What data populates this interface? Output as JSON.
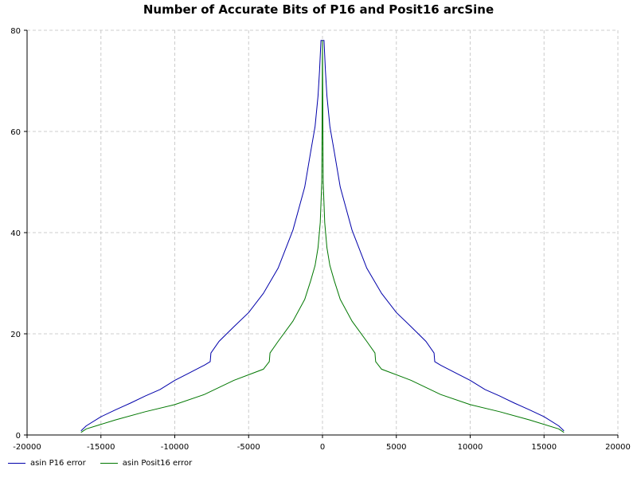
{
  "chart_data": {
    "type": "line",
    "title": "Number of Accurate Bits of P16 and Posit16 arcSine",
    "xlabel": "",
    "ylabel": "",
    "xlim": [
      -20000,
      20000
    ],
    "ylim": [
      0,
      80
    ],
    "xticks": [
      -20000,
      -15000,
      -10000,
      -5000,
      0,
      5000,
      10000,
      15000,
      20000
    ],
    "yticks": [
      0,
      20,
      40,
      60,
      80
    ],
    "grid": true,
    "legend_position": "bottom-left",
    "series": [
      {
        "name": "asin P16 error",
        "color": "#0000aa",
        "x": [
          -16350,
          -16000,
          -15000,
          -14000,
          -13000,
          -12000,
          -11000,
          -10000,
          -9000,
          -8000,
          -7600,
          -7550,
          -7000,
          -6000,
          -5000,
          -4000,
          -3000,
          -2000,
          -1200,
          -800,
          -500,
          -300,
          -200,
          -100,
          0,
          100,
          200,
          300,
          500,
          800,
          1200,
          2000,
          3000,
          4000,
          5000,
          6000,
          7000,
          7550,
          7600,
          8000,
          9000,
          10000,
          11000,
          12000,
          13000,
          14000,
          15000,
          16000,
          16350
        ],
        "y": [
          0.8,
          1.8,
          3.6,
          5.0,
          6.3,
          7.7,
          9.0,
          10.8,
          12.3,
          13.8,
          14.5,
          16.2,
          18.5,
          21.4,
          24.2,
          28.0,
          33.0,
          40.5,
          49.0,
          56.0,
          61.0,
          67.0,
          72.0,
          78.0,
          78.0,
          78.0,
          72.0,
          67.0,
          61.0,
          56.0,
          49.0,
          40.5,
          33.0,
          28.0,
          24.2,
          21.4,
          18.5,
          16.2,
          14.5,
          13.8,
          12.3,
          10.8,
          9.0,
          7.7,
          6.3,
          5.0,
          3.6,
          1.8,
          0.8
        ]
      },
      {
        "name": "asin Posit16 error",
        "color": "#007700",
        "x": [
          -16350,
          -16000,
          -14000,
          -12000,
          -10000,
          -8000,
          -6000,
          -4000,
          -3600,
          -3550,
          -3000,
          -2000,
          -1200,
          -800,
          -500,
          -300,
          -150,
          -50,
          0,
          50,
          150,
          300,
          500,
          800,
          1200,
          2000,
          3000,
          3550,
          3600,
          4000,
          6000,
          8000,
          10000,
          12000,
          14000,
          16000,
          16350
        ],
        "y": [
          0.5,
          1.2,
          3.0,
          4.6,
          6.0,
          8.0,
          10.8,
          13.0,
          14.5,
          16.2,
          18.5,
          22.5,
          26.8,
          30.5,
          33.5,
          37.0,
          42.0,
          50.0,
          78.0,
          50.0,
          42.0,
          37.0,
          33.5,
          30.5,
          26.8,
          22.5,
          18.5,
          16.2,
          14.5,
          13.0,
          10.8,
          8.0,
          6.0,
          4.6,
          3.0,
          1.2,
          0.5
        ]
      }
    ]
  }
}
